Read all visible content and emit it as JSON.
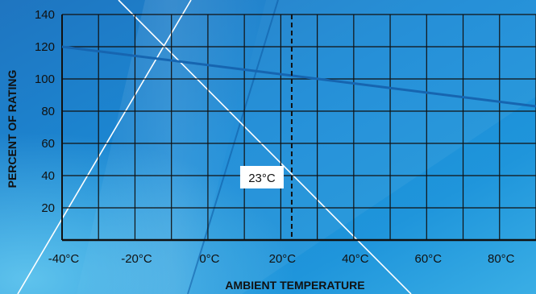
{
  "chart_data": {
    "type": "line",
    "xlabel": "AMBIENT TEMPERATURE",
    "ylabel": "PERCENT OF RATING",
    "x_ticks": [
      {
        "value": -40,
        "label": "-40°C"
      },
      {
        "value": -20,
        "label": "-20°C"
      },
      {
        "value": 0,
        "label": "0°C"
      },
      {
        "value": 20,
        "label": "20°C"
      },
      {
        "value": 40,
        "label": "40°C"
      },
      {
        "value": 60,
        "label": "60°C"
      },
      {
        "value": 80,
        "label": "80°C"
      }
    ],
    "y_ticks": [
      {
        "value": 20,
        "label": "20"
      },
      {
        "value": 40,
        "label": "40"
      },
      {
        "value": 60,
        "label": "60"
      },
      {
        "value": 80,
        "label": "80"
      },
      {
        "value": 100,
        "label": "100"
      },
      {
        "value": 120,
        "label": "120"
      },
      {
        "value": 140,
        "label": "140"
      }
    ],
    "xlim": [
      -40,
      90
    ],
    "ylim": [
      0,
      140
    ],
    "grid": true,
    "series": [
      {
        "x": [
          -40,
          90
        ],
        "y": [
          120,
          83
        ],
        "color": "#1665b0"
      }
    ],
    "reference_line": {
      "x": 23,
      "label": "23°C",
      "style": "dashed",
      "color": "#111111"
    },
    "colors": {
      "background": "#1e88cf",
      "grid": "#111111",
      "text": "#111111"
    }
  }
}
